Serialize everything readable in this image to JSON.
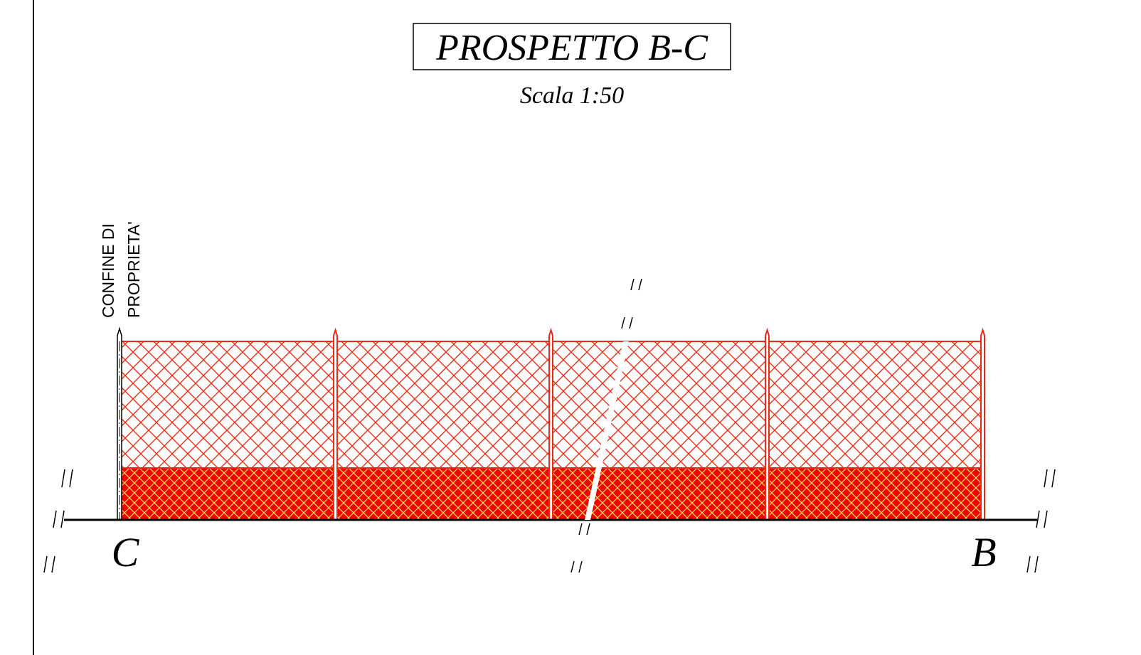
{
  "header": {
    "title": "PROSPETTO B-C",
    "scale": "Scala 1:50"
  },
  "labels": {
    "boundary_line1": "CONFINE DI",
    "boundary_line2": "PROPRIETA'",
    "left_point": "C",
    "right_point": "B"
  }
}
